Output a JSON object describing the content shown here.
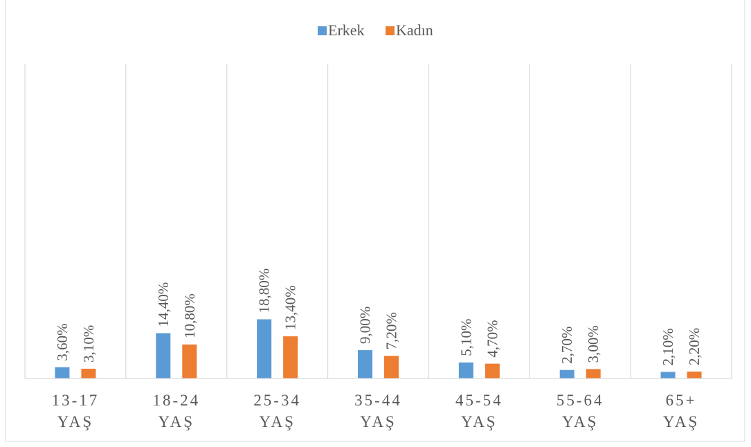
{
  "chart_data": {
    "type": "bar",
    "title": "",
    "xlabel": "",
    "ylabel": "",
    "categories": [
      [
        "13-17",
        "YAŞ"
      ],
      [
        "18-24",
        "YAŞ"
      ],
      [
        "25-34",
        "YAŞ"
      ],
      [
        "35-44",
        "YAŞ"
      ],
      [
        "45-54",
        "YAŞ"
      ],
      [
        "55-64",
        "YAŞ"
      ],
      [
        "65+",
        "YAŞ"
      ]
    ],
    "series": [
      {
        "name": "Erkek",
        "color": "#5b9bd5",
        "values": [
          3.6,
          14.4,
          18.8,
          9.0,
          5.1,
          2.7,
          2.1
        ],
        "labels": [
          "3,60%",
          "14,40%",
          "18,80%",
          "9,00%",
          "5,10%",
          "2,70%",
          "2,10%"
        ]
      },
      {
        "name": "Kadın",
        "color": "#ed7d31",
        "values": [
          3.1,
          10.8,
          13.4,
          7.2,
          4.7,
          3.0,
          2.2
        ],
        "labels": [
          "3,10%",
          "10,80%",
          "13,40%",
          "7,20%",
          "4,70%",
          "3,00%",
          "2,20%"
        ]
      }
    ],
    "ylim": [
      0,
      100
    ],
    "grid": "vertical-category-separators",
    "legend": "top-center",
    "label_orientation": "vertical"
  }
}
